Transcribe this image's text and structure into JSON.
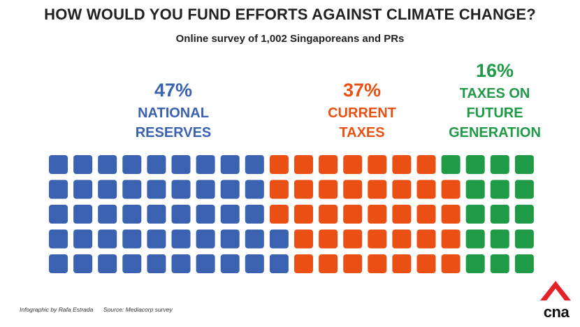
{
  "chart_data": {
    "type": "waffle",
    "title": "HOW WOULD YOU FUND EFFORTS AGAINST CLIMATE CHANGE?",
    "subtitle": "Online survey of 1,002 Singaporeans and PRs",
    "rows": 5,
    "cols": 20,
    "series": [
      {
        "name": "NATIONAL RESERVES",
        "label_lines": [
          "NATIONAL",
          "RESERVES"
        ],
        "value": 47,
        "value_label": "47%",
        "color": "#3a62b0"
      },
      {
        "name": "CURRENT TAXES",
        "label_lines": [
          "CURRENT",
          "TAXES"
        ],
        "value": 37,
        "value_label": "37%",
        "color": "#ea5014"
      },
      {
        "name": "TAXES ON FUTURE GENERATION",
        "label_lines": [
          "TAXES ON",
          "FUTURE",
          "GENERATION"
        ],
        "value": 16,
        "value_label": "16%",
        "color": "#1f9a46"
      }
    ]
  },
  "footer": {
    "credit": "Infographic by Rafa Estrada",
    "source": "Source: Mediacorp survey"
  },
  "logo": {
    "text": "cna",
    "color": "#e42227"
  }
}
